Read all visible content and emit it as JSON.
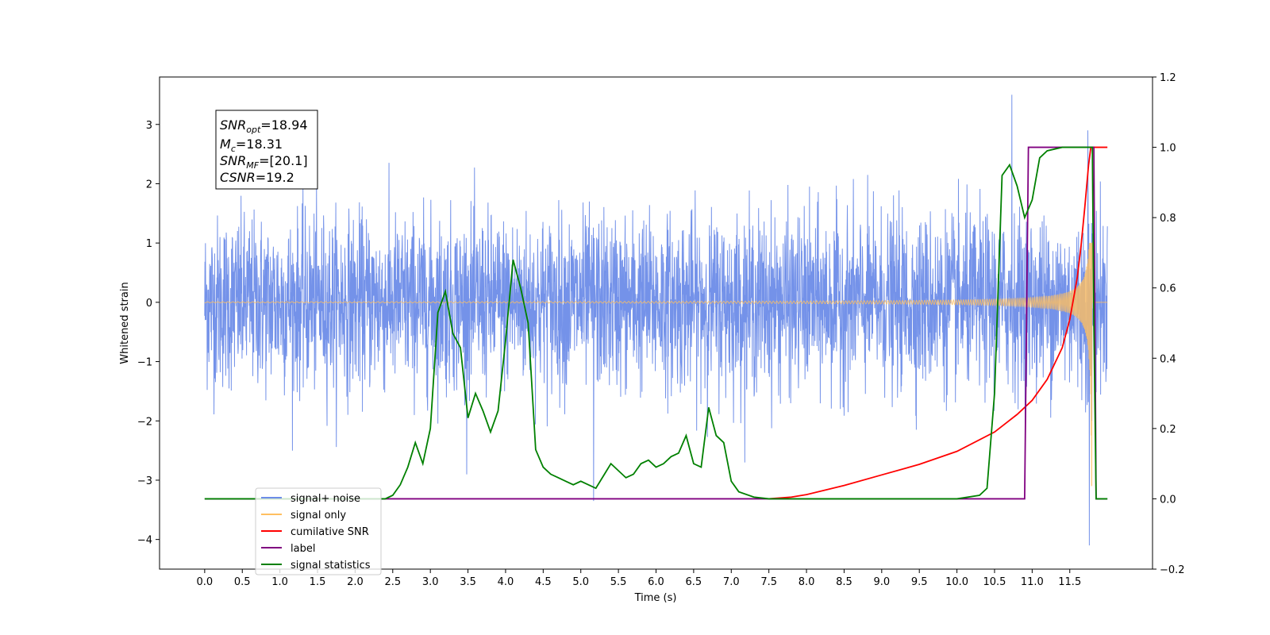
{
  "chart_data": {
    "type": "line",
    "xlabel": "Time (s)",
    "ylabel": "Whitened strain",
    "xlim": [
      -0.6,
      12.6
    ],
    "ylim": [
      -4.5,
      3.8
    ],
    "y2lim": [
      -0.2,
      1.2
    ],
    "x_ticks": [
      "0.0",
      "0.5",
      "1.0",
      "1.5",
      "2.0",
      "2.5",
      "3.0",
      "3.5",
      "4.0",
      "4.5",
      "5.0",
      "5.5",
      "6.0",
      "6.5",
      "7.0",
      "7.5",
      "8.0",
      "8.5",
      "9.0",
      "9.5",
      "10.0",
      "10.5",
      "11.0",
      "11.5"
    ],
    "y_ticks": [
      "3",
      "2",
      "1",
      "0",
      "−1",
      "−2",
      "−3",
      "−4"
    ],
    "y2_ticks": [
      "1.2",
      "1.0",
      "0.8",
      "0.6",
      "0.4",
      "0.2",
      "0.0",
      "−0.2"
    ],
    "legend": {
      "position": "lower-left",
      "entries": [
        {
          "label": "signal+ noise",
          "color": "#6d8ce8"
        },
        {
          "label": "signal only",
          "color": "#ffbf60"
        },
        {
          "label": "cumilative SNR",
          "color": "#ff0000"
        },
        {
          "label": "label",
          "color": "#800080"
        },
        {
          "label": "signal statistics",
          "color": "#008000"
        }
      ]
    },
    "annotation": {
      "snr_opt": {
        "base": "SNR",
        "sub": "opt",
        "value": "=18.94"
      },
      "mc": {
        "base": "M",
        "sub": "c",
        "value": "=18.31"
      },
      "snr_mf": {
        "base": "SNR",
        "sub": "MF",
        "value": "=[20.1]"
      },
      "csnr": {
        "base": "CSNR",
        "value": "=19.2"
      }
    },
    "series": [
      {
        "name": "signal+ noise",
        "axis": "left",
        "color": "#6d8ce8",
        "description_points": {
          "t_start": 0.0,
          "t_end": 12.0,
          "std": 0.75,
          "max": 3.5,
          "min": -4.1
        }
      },
      {
        "name": "signal only",
        "axis": "left",
        "color": "#ffbf60",
        "description_points": {
          "t_start": 0.0,
          "t_end": 12.0,
          "merger_time": 11.8,
          "peak_amplitude": 1.0
        }
      },
      {
        "name": "cumilative SNR",
        "axis": "right",
        "color": "#ff0000",
        "x": [
          7.5,
          7.8,
          8.0,
          8.5,
          9.0,
          9.5,
          10.0,
          10.5,
          10.8,
          11.0,
          11.2,
          11.4,
          11.5,
          11.6,
          11.65,
          11.7,
          11.75,
          11.78,
          11.8,
          11.85,
          12.0
        ],
        "y": [
          0.0,
          0.005,
          0.012,
          0.038,
          0.068,
          0.098,
          0.135,
          0.19,
          0.24,
          0.28,
          0.34,
          0.43,
          0.51,
          0.63,
          0.72,
          0.83,
          0.95,
          1.0,
          1.0,
          1.0,
          1.0
        ]
      },
      {
        "name": "label",
        "axis": "right",
        "color": "#800080",
        "x": [
          0.0,
          10.9,
          10.95,
          11.82,
          11.85,
          12.0
        ],
        "y": [
          0.0,
          0.0,
          1.0,
          1.0,
          0.0,
          0.0
        ]
      },
      {
        "name": "signal statistics",
        "axis": "right",
        "color": "#008000",
        "x": [
          0.0,
          2.4,
          2.5,
          2.6,
          2.7,
          2.8,
          2.9,
          3.0,
          3.1,
          3.2,
          3.3,
          3.4,
          3.5,
          3.6,
          3.7,
          3.8,
          3.9,
          4.0,
          4.1,
          4.2,
          4.3,
          4.4,
          4.5,
          4.6,
          4.7,
          4.8,
          4.9,
          5.0,
          5.2,
          5.4,
          5.6,
          5.7,
          5.8,
          5.9,
          6.0,
          6.1,
          6.2,
          6.3,
          6.4,
          6.5,
          6.6,
          6.7,
          6.8,
          6.9,
          7.0,
          7.1,
          7.3,
          7.5,
          8.0,
          9.0,
          10.0,
          10.3,
          10.4,
          10.5,
          10.6,
          10.7,
          10.8,
          10.9,
          11.0,
          11.1,
          11.2,
          11.4,
          11.6,
          11.8,
          11.82,
          11.85,
          12.0
        ],
        "y": [
          0.0,
          0.0,
          0.01,
          0.04,
          0.09,
          0.16,
          0.1,
          0.2,
          0.53,
          0.59,
          0.47,
          0.43,
          0.23,
          0.3,
          0.25,
          0.19,
          0.25,
          0.45,
          0.68,
          0.6,
          0.5,
          0.14,
          0.09,
          0.07,
          0.06,
          0.05,
          0.04,
          0.05,
          0.03,
          0.1,
          0.06,
          0.07,
          0.1,
          0.11,
          0.09,
          0.1,
          0.12,
          0.13,
          0.18,
          0.1,
          0.09,
          0.26,
          0.18,
          0.16,
          0.05,
          0.02,
          0.005,
          0.0,
          0.0,
          0.0,
          0.0,
          0.01,
          0.03,
          0.3,
          0.92,
          0.95,
          0.89,
          0.8,
          0.85,
          0.97,
          0.99,
          1.0,
          1.0,
          1.0,
          0.5,
          0.0,
          0.0
        ]
      }
    ]
  }
}
